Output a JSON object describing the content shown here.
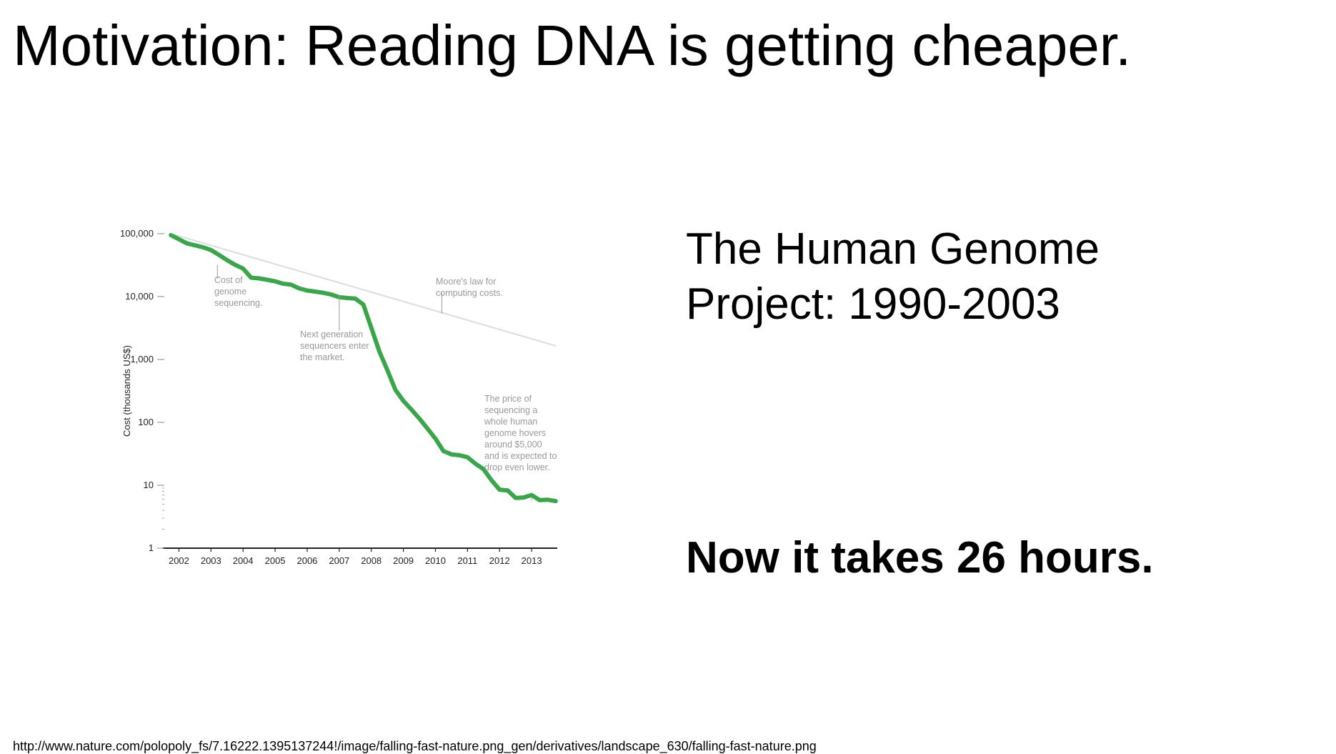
{
  "slide": {
    "title": "Motivation: Reading DNA is getting cheaper.",
    "project_line1": "The Human Genome",
    "project_line2": "Project: 1990-2003",
    "now_text": "Now it takes 26 hours.",
    "source_url": "http://www.nature.com/polopoly_fs/7.16222.1395137244!/image/falling-fast-nature.png_gen/derivatives/landscape_630/falling-fast-nature.png"
  },
  "chart_data": {
    "type": "line",
    "ylabel": "Cost (thousands US$)",
    "yscale": "log",
    "ylim": [
      1,
      100000
    ],
    "xlim": [
      2001.5,
      2013.8
    ],
    "y_ticks": [
      1,
      10,
      100,
      1000,
      10000,
      100000
    ],
    "y_tick_labels": [
      "1",
      "10",
      "100",
      "1,000",
      "10,000",
      "100,000"
    ],
    "x_ticks": [
      2002,
      2003,
      2004,
      2005,
      2006,
      2007,
      2008,
      2009,
      2010,
      2011,
      2012,
      2013
    ],
    "x_tick_labels": [
      "2002",
      "2003",
      "2004",
      "2005",
      "2006",
      "2007",
      "2008",
      "2009",
      "2010",
      "2011",
      "2012",
      "2013"
    ],
    "grid": false,
    "legend": "none",
    "series": [
      {
        "name": "Cost of genome sequencing",
        "color": "#3aa64a",
        "x": [
          2001.75,
          2002.25,
          2002.75,
          2003.0,
          2003.25,
          2003.5,
          2003.75,
          2004.0,
          2004.25,
          2004.5,
          2004.75,
          2005.0,
          2005.25,
          2005.5,
          2005.75,
          2006.0,
          2006.25,
          2006.5,
          2006.75,
          2007.0,
          2007.25,
          2007.5,
          2007.75,
          2008.0,
          2008.25,
          2008.5,
          2008.75,
          2009.0,
          2009.25,
          2009.5,
          2009.75,
          2010.0,
          2010.25,
          2010.5,
          2010.75,
          2011.0,
          2011.25,
          2011.5,
          2011.75,
          2012.0,
          2012.25,
          2012.5,
          2012.75,
          2013.0,
          2013.25,
          2013.5,
          2013.75
        ],
        "y": [
          95000,
          70000,
          61000,
          55000,
          46000,
          38000,
          32000,
          28000,
          20000,
          19500,
          18500,
          17500,
          16000,
          15500,
          13500,
          12500,
          12000,
          11500,
          10800,
          9800,
          9500,
          9300,
          7500,
          3200,
          1350,
          680,
          330,
          220,
          160,
          115,
          80,
          55,
          35,
          31,
          30,
          28,
          22,
          18,
          12,
          8.5,
          8.3,
          6.3,
          6.4,
          7.0,
          5.8,
          5.9,
          5.6
        ]
      },
      {
        "name": "Moore's law for computing costs",
        "color": "#dddddd",
        "x": [
          2001.75,
          2013.75
        ],
        "y": [
          100000,
          1650
        ]
      }
    ],
    "annotations": [
      {
        "lines": [
          "Cost of",
          "genome",
          "sequencing."
        ],
        "x": 2003.2,
        "y": 32000
      },
      {
        "lines": [
          "Next generation",
          "sequencers enter",
          "the market."
        ],
        "x": 2007.0,
        "y": 10500
      },
      {
        "lines": [
          "Moore's law for",
          "computing costs."
        ],
        "x": 2010.2,
        "y": 5400
      },
      {
        "lines": [
          "The price of",
          "sequencing a",
          "whole human",
          "genome hovers",
          "around $5,000",
          "and is expected to",
          "drop even lower."
        ],
        "x": 2013.0,
        "y": 6.5
      }
    ]
  }
}
